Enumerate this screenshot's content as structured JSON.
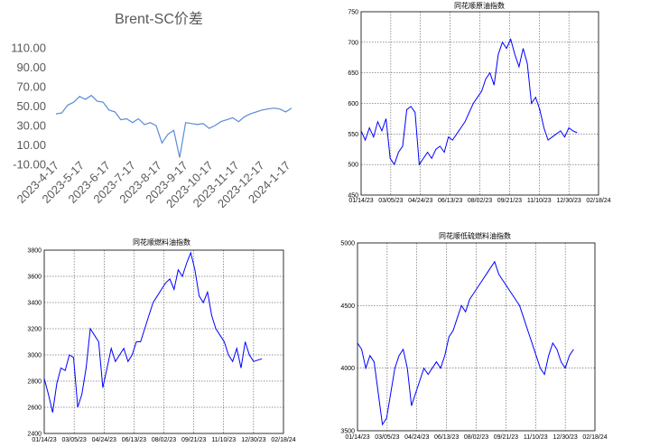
{
  "chart_data": [
    {
      "type": "line",
      "title": "Brent-SC价差",
      "xlabel": "",
      "ylabel": "",
      "x_tick_labels": [
        "2023-4-17",
        "2023-5-17",
        "2023-6-17",
        "2023-7-17",
        "2023-8-17",
        "2023-9-17",
        "2023-10-17",
        "2023-11-17",
        "2023-12-17",
        "2024-1-17"
      ],
      "y_tick_labels": [
        "-10.00",
        "10.00",
        "30.00",
        "50.00",
        "70.00",
        "90.00",
        "110.00"
      ],
      "ylim": [
        -10,
        110
      ],
      "grid": false,
      "color": "#5b8bd6",
      "x": [
        "2023-4-17",
        "2023-4-24",
        "2023-5-1",
        "2023-5-8",
        "2023-5-15",
        "2023-5-22",
        "2023-5-29",
        "2023-6-5",
        "2023-6-12",
        "2023-6-19",
        "2023-6-26",
        "2023-7-3",
        "2023-7-10",
        "2023-7-17",
        "2023-7-24",
        "2023-7-31",
        "2023-8-7",
        "2023-8-14",
        "2023-8-21",
        "2023-8-28",
        "2023-9-4",
        "2023-9-11",
        "2023-9-18",
        "2023-9-25",
        "2023-10-2",
        "2023-10-9",
        "2023-10-16",
        "2023-10-23",
        "2023-10-30",
        "2023-11-6",
        "2023-11-13",
        "2023-11-20",
        "2023-11-27",
        "2023-12-4",
        "2023-12-11",
        "2023-12-18",
        "2023-12-25",
        "2024-1-1",
        "2024-1-8",
        "2024-1-15",
        "2024-1-22"
      ],
      "values": [
        42,
        43,
        51,
        54,
        60,
        57,
        61,
        55,
        54,
        46,
        44,
        36,
        37,
        33,
        37,
        31,
        33,
        30,
        12,
        21,
        25,
        -3,
        33,
        32,
        31,
        32,
        27,
        30,
        34,
        36,
        38,
        34,
        39,
        42,
        44,
        46,
        47,
        48,
        47,
        44,
        48
      ]
    },
    {
      "type": "line",
      "title": "同花顺原油指数",
      "x_tick_labels": [
        "01/14/23",
        "03/05/23",
        "04/24/23",
        "06/13/23",
        "08/02/23",
        "09/21/23",
        "11/10/23",
        "12/30/23",
        "02/18/24"
      ],
      "y_tick_labels": [
        "450",
        "500",
        "550",
        "600",
        "650",
        "700",
        "750"
      ],
      "ylim": [
        450,
        750
      ],
      "grid": true,
      "color": "#0000ff",
      "x": [
        "2023-1-14",
        "2023-1-21",
        "2023-1-28",
        "2023-2-4",
        "2023-2-11",
        "2023-2-18",
        "2023-2-25",
        "2023-3-4",
        "2023-3-11",
        "2023-3-18",
        "2023-3-25",
        "2023-4-1",
        "2023-4-8",
        "2023-4-15",
        "2023-4-22",
        "2023-4-29",
        "2023-5-6",
        "2023-5-13",
        "2023-5-20",
        "2023-5-27",
        "2023-6-3",
        "2023-6-10",
        "2023-6-17",
        "2023-6-24",
        "2023-7-1",
        "2023-7-8",
        "2023-7-15",
        "2023-7-22",
        "2023-7-29",
        "2023-8-5",
        "2023-8-12",
        "2023-8-19",
        "2023-8-26",
        "2023-9-2",
        "2023-9-9",
        "2023-9-16",
        "2023-9-23",
        "2023-9-30",
        "2023-10-7",
        "2023-10-14",
        "2023-10-21",
        "2023-10-28",
        "2023-11-4",
        "2023-11-11",
        "2023-11-18",
        "2023-11-25",
        "2023-12-2",
        "2023-12-9",
        "2023-12-16",
        "2023-12-23",
        "2023-12-30",
        "2024-1-6",
        "2024-1-13"
      ],
      "values": [
        555,
        540,
        560,
        545,
        570,
        555,
        575,
        510,
        500,
        520,
        530,
        590,
        595,
        585,
        500,
        510,
        520,
        510,
        525,
        530,
        520,
        545,
        540,
        550,
        560,
        570,
        585,
        600,
        610,
        620,
        640,
        650,
        630,
        680,
        700,
        690,
        705,
        680,
        660,
        690,
        665,
        600,
        610,
        590,
        560,
        540,
        545,
        550,
        555,
        545,
        560,
        555,
        552
      ]
    },
    {
      "type": "line",
      "title": "同花顺燃料油指数",
      "x_tick_labels": [
        "01/14/23",
        "03/05/23",
        "04/24/23",
        "06/13/23",
        "08/02/23",
        "09/21/23",
        "11/10/23",
        "12/30/23",
        "02/18/24"
      ],
      "y_tick_labels": [
        "2400",
        "2600",
        "2800",
        "3000",
        "3200",
        "3400",
        "3600",
        "3800"
      ],
      "ylim": [
        2400,
        3800
      ],
      "grid": true,
      "color": "#0000ff",
      "x": [
        "2023-1-14",
        "2023-1-21",
        "2023-1-28",
        "2023-2-4",
        "2023-2-11",
        "2023-2-18",
        "2023-2-25",
        "2023-3-4",
        "2023-3-11",
        "2023-3-18",
        "2023-3-25",
        "2023-4-1",
        "2023-4-8",
        "2023-4-15",
        "2023-4-22",
        "2023-4-29",
        "2023-5-6",
        "2023-5-13",
        "2023-5-20",
        "2023-5-27",
        "2023-6-3",
        "2023-6-10",
        "2023-6-17",
        "2023-6-24",
        "2023-7-1",
        "2023-7-8",
        "2023-7-15",
        "2023-7-22",
        "2023-7-29",
        "2023-8-5",
        "2023-8-12",
        "2023-8-19",
        "2023-8-26",
        "2023-9-2",
        "2023-9-9",
        "2023-9-16",
        "2023-9-23",
        "2023-9-30",
        "2023-10-7",
        "2023-10-14",
        "2023-10-21",
        "2023-10-28",
        "2023-11-4",
        "2023-11-11",
        "2023-11-18",
        "2023-11-25",
        "2023-12-2",
        "2023-12-9",
        "2023-12-16",
        "2023-12-23",
        "2023-12-30",
        "2024-1-6",
        "2024-1-13"
      ],
      "values": [
        2820,
        2700,
        2560,
        2780,
        2900,
        2880,
        3000,
        2980,
        2600,
        2700,
        2900,
        3200,
        3150,
        3100,
        2750,
        2900,
        3050,
        2950,
        3000,
        3050,
        2950,
        3000,
        3100,
        3100,
        3200,
        3300,
        3400,
        3450,
        3500,
        3550,
        3580,
        3500,
        3650,
        3600,
        3700,
        3780,
        3650,
        3450,
        3400,
        3480,
        3300,
        3200,
        3150,
        3100,
        3000,
        2950,
        3050,
        2900,
        3100,
        3000,
        2950,
        2960,
        2970
      ]
    },
    {
      "type": "line",
      "title": "同花顺低硫燃料油指数",
      "x_tick_labels": [
        "01/14/23",
        "03/05/23",
        "04/24/23",
        "06/13/23",
        "08/02/23",
        "09/21/23",
        "11/10/23",
        "12/30/23",
        "02/18/24"
      ],
      "y_tick_labels": [
        "3500",
        "4000",
        "4500",
        "5000"
      ],
      "ylim": [
        3500,
        5000
      ],
      "grid": true,
      "color": "#0000ff",
      "x": [
        "2023-1-14",
        "2023-1-21",
        "2023-1-28",
        "2023-2-4",
        "2023-2-11",
        "2023-2-18",
        "2023-2-25",
        "2023-3-4",
        "2023-3-11",
        "2023-3-18",
        "2023-3-25",
        "2023-4-1",
        "2023-4-8",
        "2023-4-15",
        "2023-4-22",
        "2023-4-29",
        "2023-5-6",
        "2023-5-13",
        "2023-5-20",
        "2023-5-27",
        "2023-6-3",
        "2023-6-10",
        "2023-6-17",
        "2023-6-24",
        "2023-7-1",
        "2023-7-8",
        "2023-7-15",
        "2023-7-22",
        "2023-7-29",
        "2023-8-5",
        "2023-8-12",
        "2023-8-19",
        "2023-8-26",
        "2023-9-2",
        "2023-9-9",
        "2023-9-16",
        "2023-9-23",
        "2023-9-30",
        "2023-10-7",
        "2023-10-14",
        "2023-10-21",
        "2023-10-28",
        "2023-11-4",
        "2023-11-11",
        "2023-11-18",
        "2023-11-25",
        "2023-12-2",
        "2023-12-9",
        "2023-12-16",
        "2023-12-23",
        "2023-12-30",
        "2024-1-6",
        "2024-1-13"
      ],
      "values": [
        4200,
        4150,
        4000,
        4100,
        4050,
        3800,
        3550,
        3600,
        3800,
        4000,
        4100,
        4150,
        4000,
        3700,
        3800,
        3900,
        4000,
        3950,
        4000,
        4050,
        4000,
        4100,
        4250,
        4300,
        4400,
        4500,
        4450,
        4550,
        4600,
        4650,
        4700,
        4750,
        4800,
        4850,
        4750,
        4700,
        4650,
        4600,
        4550,
        4500,
        4400,
        4300,
        4200,
        4100,
        4000,
        3950,
        4100,
        4200,
        4150,
        4050,
        4000,
        4100,
        4150
      ]
    }
  ]
}
